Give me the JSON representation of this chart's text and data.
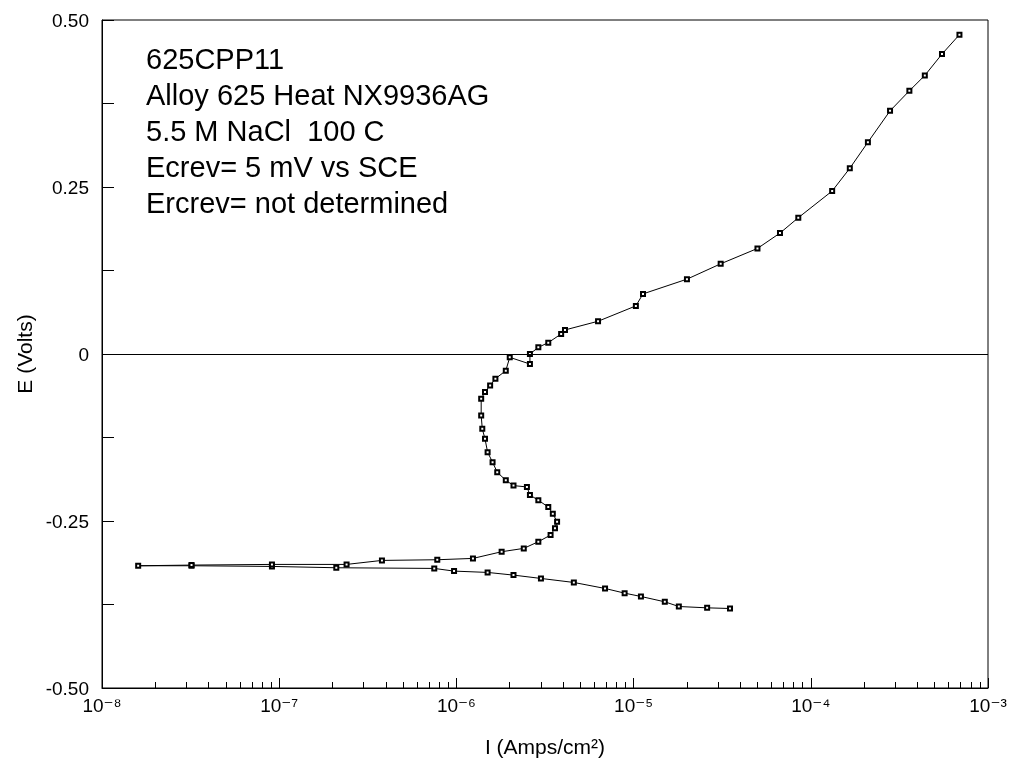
{
  "chart_data": {
    "type": "line",
    "xlabel": "I (Amps/cm²)",
    "ylabel": "E (Volts)",
    "annotations": [
      "625CPP11",
      "Alloy 625 Heat NX9936AG",
      "5.5 M NaCl  100 C",
      "Ecrev= 5 mV vs SCE",
      "Ercrev= not determined"
    ],
    "x": [
      3.5e-05,
      2.6e-05,
      1.8e-05,
      1.5e-05,
      1.1e-05,
      8.9e-06,
      6.9e-06,
      4.6e-06,
      3e-06,
      2.1e-06,
      1.5e-06,
      9.7e-07,
      7.5e-07,
      2.1e-07,
      9.1e-08,
      3.2e-08,
      1.6e-08,
      3.2e-08,
      9.1e-08,
      2.4e-07,
      3.8e-07,
      7.8e-07,
      1.24e-06,
      1.8e-06,
      2.4e-06,
      2.9e-06,
      3.4e-06,
      3.6e-06,
      3.7e-06,
      3.5e-06,
      3.3e-06,
      2.9e-06,
      2.6e-06,
      2.5e-06,
      2.1e-06,
      1.9e-06,
      1.7e-06,
      1.6e-06,
      1.5e-06,
      1.45e-06,
      1.4e-06,
      1.38e-06,
      1.38e-06,
      1.45e-06,
      1.55e-06,
      1.66e-06,
      1.9e-06,
      2e-06,
      2.6e-06,
      2.6e-06,
      2.9e-06,
      3.3e-06,
      3.9e-06,
      4.1e-06,
      6.3e-06,
      1.03e-05,
      1.13e-05,
      2e-05,
      3.1e-05,
      5e-05,
      6.7e-05,
      8.5e-05,
      0.000132,
      0.000166,
      0.00021,
      0.00028,
      0.00036,
      0.00044,
      0.00055,
      0.00069
    ],
    "values": [
      -0.381,
      -0.38,
      -0.378,
      -0.371,
      -0.363,
      -0.358,
      -0.351,
      -0.342,
      -0.336,
      -0.331,
      -0.327,
      -0.325,
      -0.321,
      -0.32,
      -0.318,
      -0.317,
      -0.317,
      -0.316,
      -0.315,
      -0.315,
      -0.309,
      -0.308,
      -0.306,
      -0.296,
      -0.291,
      -0.281,
      -0.271,
      -0.261,
      -0.251,
      -0.239,
      -0.229,
      -0.219,
      -0.211,
      -0.199,
      -0.197,
      -0.189,
      -0.177,
      -0.162,
      -0.147,
      -0.127,
      -0.112,
      -0.092,
      -0.067,
      -0.057,
      -0.047,
      -0.037,
      -0.025,
      -0.005,
      -0.015,
      0.0,
      0.01,
      0.017,
      0.03,
      0.036,
      0.049,
      0.072,
      0.09,
      0.112,
      0.135,
      0.158,
      0.181,
      0.204,
      0.244,
      0.278,
      0.317,
      0.364,
      0.394,
      0.417,
      0.449,
      0.478
    ],
    "color": "#000000",
    "marker": "square",
    "line_style": "solid",
    "log": "x",
    "xlim": [
      1e-08,
      0.001
    ],
    "xticks": [
      {
        "value": 1e-08,
        "label": "10⁻⁸"
      },
      {
        "value": 2e-08,
        "label": null
      },
      {
        "value": 3e-08,
        "label": null
      },
      {
        "value": 4e-08,
        "label": null
      },
      {
        "value": 5e-08,
        "label": null
      },
      {
        "value": 6e-08,
        "label": null
      },
      {
        "value": 7e-08,
        "label": null
      },
      {
        "value": 8e-08,
        "label": null
      },
      {
        "value": 9e-08,
        "label": null
      },
      {
        "value": 1e-07,
        "label": "10⁻⁷"
      },
      {
        "value": 2e-07,
        "label": null
      },
      {
        "value": 3e-07,
        "label": null
      },
      {
        "value": 4e-07,
        "label": null
      },
      {
        "value": 5e-07,
        "label": null
      },
      {
        "value": 6e-07,
        "label": null
      },
      {
        "value": 7e-07,
        "label": null
      },
      {
        "value": 8e-07,
        "label": null
      },
      {
        "value": 9e-07,
        "label": null
      },
      {
        "value": 1e-06,
        "label": "10⁻⁶"
      },
      {
        "value": 2e-06,
        "label": null
      },
      {
        "value": 3e-06,
        "label": null
      },
      {
        "value": 4e-06,
        "label": null
      },
      {
        "value": 5e-06,
        "label": null
      },
      {
        "value": 6e-06,
        "label": null
      },
      {
        "value": 7e-06,
        "label": null
      },
      {
        "value": 8e-06,
        "label": null
      },
      {
        "value": 9e-06,
        "label": null
      },
      {
        "value": 1e-05,
        "label": "10⁻⁵"
      },
      {
        "value": 2e-05,
        "label": null
      },
      {
        "value": 3e-05,
        "label": null
      },
      {
        "value": 4e-05,
        "label": null
      },
      {
        "value": 5e-05,
        "label": null
      },
      {
        "value": 6e-05,
        "label": null
      },
      {
        "value": 7e-05,
        "label": null
      },
      {
        "value": 8e-05,
        "label": null
      },
      {
        "value": 9e-05,
        "label": null
      },
      {
        "value": 0.0001,
        "label": "10⁻⁴"
      },
      {
        "value": 0.0002,
        "label": null
      },
      {
        "value": 0.0003,
        "label": null
      },
      {
        "value": 0.0004,
        "label": null
      },
      {
        "value": 0.0005,
        "label": null
      },
      {
        "value": 0.0006,
        "label": null
      },
      {
        "value": 0.0007,
        "label": null
      },
      {
        "value": 0.0008,
        "label": null
      },
      {
        "value": 0.0009,
        "label": null
      },
      {
        "value": 0.001,
        "label": "10⁻³"
      }
    ],
    "ylim": [
      -0.5,
      0.5
    ],
    "yticks": [
      {
        "value": -0.5,
        "label": "-0.50"
      },
      {
        "value": -0.375,
        "label": null
      },
      -0.25,
      {
        "value": -0.125,
        "label": null
      },
      0,
      {
        "value": 0.125,
        "label": null
      },
      0.25,
      {
        "value": 0.375,
        "label": null
      },
      {
        "value": 0.5,
        "label": "0.50"
      }
    ],
    "ref_lines": [
      {
        "axis": "y",
        "value": 0,
        "color": "#000000"
      }
    ]
  }
}
